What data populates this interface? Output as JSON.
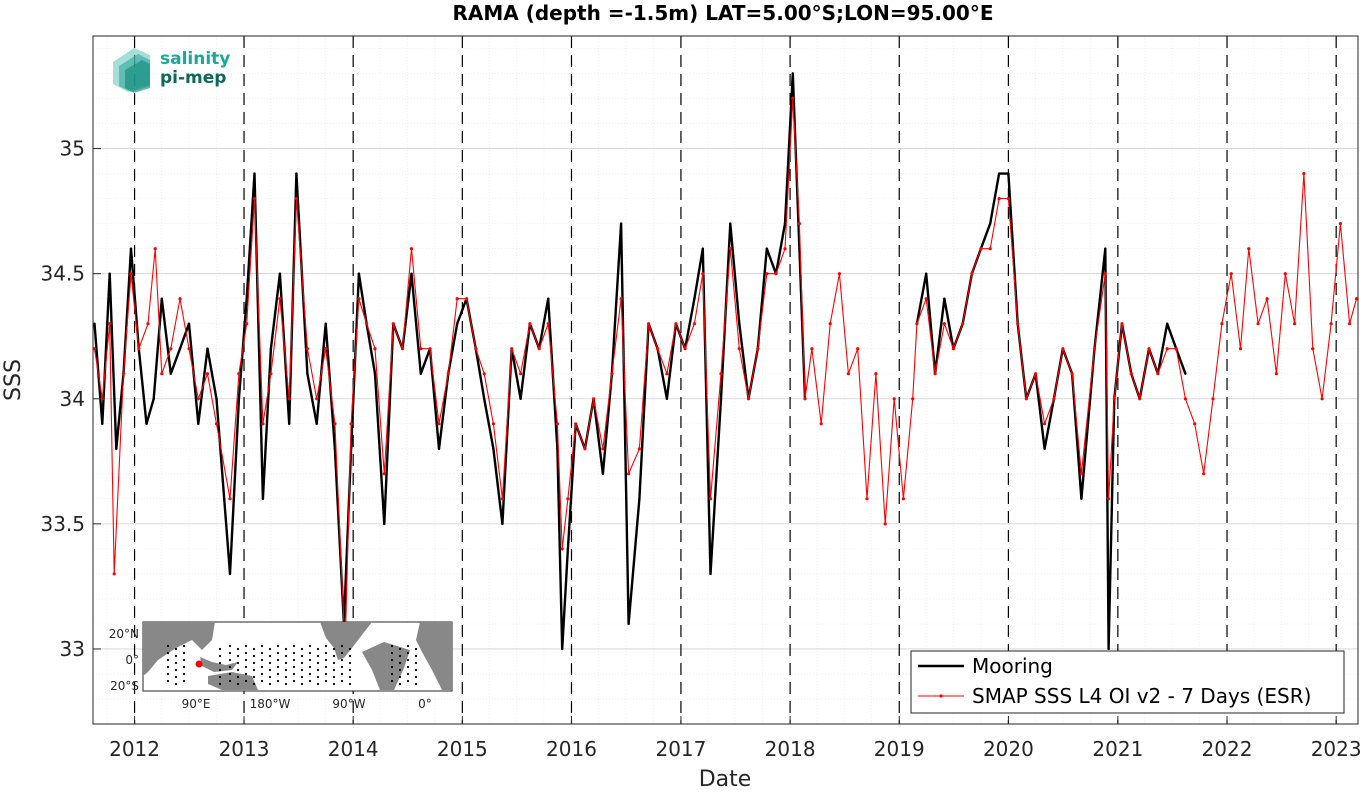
{
  "chart_data": {
    "type": "line",
    "title": "RAMA (depth =-1.5m) LAT=5.00°S;LON=95.00°E",
    "xlabel": "Date",
    "ylabel": "SSS",
    "xlim": [
      "2011-08-15",
      "2023-03-15"
    ],
    "ylim": [
      32.7,
      35.45
    ],
    "x_ticks": [
      "2012",
      "2013",
      "2014",
      "2015",
      "2016",
      "2017",
      "2018",
      "2019",
      "2020",
      "2021",
      "2022",
      "2023"
    ],
    "y_ticks": [
      33,
      33.5,
      34,
      34.5,
      35
    ],
    "y_tick_labels": [
      "33",
      "33.5",
      "34",
      "34.5",
      "35"
    ],
    "grid": true,
    "year_boundary_lines": "dashed black at each Jan 1",
    "legend_location": "bottom-right",
    "series": [
      {
        "name": "Mooring",
        "color": "#000000",
        "points": [
          [
            "2011-08-20",
            34.3
          ],
          [
            "2011-09-15",
            33.9
          ],
          [
            "2011-10-10",
            34.5
          ],
          [
            "2011-11-01",
            33.8
          ],
          [
            "2011-11-25",
            34.1
          ],
          [
            "2011-12-20",
            34.6
          ],
          [
            "2012-01-15",
            34.2
          ],
          [
            "2012-02-10",
            33.9
          ],
          [
            "2012-03-05",
            34.0
          ],
          [
            "2012-04-01",
            34.4
          ],
          [
            "2012-05-01",
            34.1
          ],
          [
            "2012-06-01",
            34.2
          ],
          [
            "2012-07-01",
            34.3
          ],
          [
            "2012-08-01",
            33.9
          ],
          [
            "2012-09-01",
            34.2
          ],
          [
            "2012-10-01",
            34.0
          ],
          [
            "2012-11-15",
            33.3
          ],
          [
            "2012-12-15",
            34.0
          ],
          [
            "2013-01-10",
            34.4
          ],
          [
            "2013-02-05",
            34.9
          ],
          [
            "2013-03-05",
            33.6
          ],
          [
            "2013-04-01",
            34.2
          ],
          [
            "2013-05-01",
            34.5
          ],
          [
            "2013-06-01",
            33.9
          ],
          [
            "2013-06-25",
            34.9
          ],
          [
            "2013-08-01",
            34.1
          ],
          [
            "2013-09-01",
            33.9
          ],
          [
            "2013-10-01",
            34.3
          ],
          [
            "2013-11-01",
            33.8
          ],
          [
            "2013-12-01",
            33.1
          ],
          [
            "2013-12-25",
            33.8
          ],
          [
            "2014-01-20",
            34.5
          ],
          [
            "2014-02-15",
            34.3
          ],
          [
            "2014-03-15",
            34.1
          ],
          [
            "2014-04-15",
            33.5
          ],
          [
            "2014-05-15",
            34.3
          ],
          [
            "2014-06-15",
            34.2
          ],
          [
            "2014-07-15",
            34.5
          ],
          [
            "2014-08-15",
            34.1
          ],
          [
            "2014-09-15",
            34.2
          ],
          [
            "2014-10-15",
            33.8
          ],
          [
            "2014-11-15",
            34.1
          ],
          [
            "2014-12-15",
            34.3
          ],
          [
            "2015-01-15",
            34.4
          ],
          [
            "2015-02-15",
            34.2
          ],
          [
            "2015-03-15",
            34.0
          ],
          [
            "2015-04-15",
            33.8
          ],
          [
            "2015-05-15",
            33.5
          ],
          [
            "2015-06-15",
            34.2
          ],
          [
            "2015-07-15",
            34.0
          ],
          [
            "2015-08-15",
            34.3
          ],
          [
            "2015-09-15",
            34.2
          ],
          [
            "2015-10-15",
            34.4
          ],
          [
            "2015-11-15",
            33.8
          ],
          [
            "2015-12-01",
            33.0
          ],
          [
            "2015-12-20",
            33.4
          ],
          [
            "2016-01-15",
            33.9
          ],
          [
            "2016-02-15",
            33.8
          ],
          [
            "2016-03-15",
            34.0
          ],
          [
            "2016-04-15",
            33.7
          ],
          [
            "2016-05-15",
            34.1
          ],
          [
            "2016-06-15",
            34.7
          ],
          [
            "2016-07-10",
            33.1
          ],
          [
            "2016-08-15",
            33.6
          ],
          [
            "2016-09-15",
            34.3
          ],
          [
            "2016-10-15",
            34.2
          ],
          [
            "2016-11-15",
            34.0
          ],
          [
            "2016-12-15",
            34.3
          ],
          [
            "2017-01-15",
            34.2
          ],
          [
            "2017-02-15",
            34.4
          ],
          [
            "2017-03-15",
            34.6
          ],
          [
            "2017-04-10",
            33.3
          ],
          [
            "2017-05-15",
            34.0
          ],
          [
            "2017-06-15",
            34.7
          ],
          [
            "2017-07-15",
            34.3
          ],
          [
            "2017-08-15",
            34.0
          ],
          [
            "2017-09-15",
            34.2
          ],
          [
            "2017-10-15",
            34.6
          ],
          [
            "2017-11-15",
            34.5
          ],
          [
            "2017-12-15",
            34.7
          ],
          [
            "2018-01-10",
            35.3
          ],
          [
            "2018-02-01",
            34.6
          ],
          [
            "2018-02-20",
            34.0
          ],
          [
            "2019-03-01",
            34.3
          ],
          [
            "2019-04-01",
            34.5
          ],
          [
            "2019-05-01",
            34.1
          ],
          [
            "2019-06-01",
            34.4
          ],
          [
            "2019-07-01",
            34.2
          ],
          [
            "2019-08-01",
            34.3
          ],
          [
            "2019-09-01",
            34.5
          ],
          [
            "2019-10-01",
            34.6
          ],
          [
            "2019-11-01",
            34.7
          ],
          [
            "2019-12-01",
            34.9
          ],
          [
            "2020-01-01",
            34.9
          ],
          [
            "2020-02-01",
            34.3
          ],
          [
            "2020-03-01",
            34.0
          ],
          [
            "2020-04-01",
            34.1
          ],
          [
            "2020-05-01",
            33.8
          ],
          [
            "2020-06-01",
            34.0
          ],
          [
            "2020-07-01",
            34.2
          ],
          [
            "2020-08-01",
            34.1
          ],
          [
            "2020-09-01",
            33.6
          ],
          [
            "2020-10-15",
            34.2
          ],
          [
            "2020-11-20",
            34.6
          ],
          [
            "2020-12-01",
            33.0
          ],
          [
            "2020-12-20",
            34.0
          ],
          [
            "2021-01-15",
            34.3
          ],
          [
            "2021-02-15",
            34.1
          ],
          [
            "2021-03-15",
            34.0
          ],
          [
            "2021-04-15",
            34.2
          ],
          [
            "2021-05-15",
            34.1
          ],
          [
            "2021-06-15",
            34.3
          ],
          [
            "2021-07-15",
            34.2
          ],
          [
            "2021-08-15",
            34.1
          ]
        ]
      },
      {
        "name": "SMAP SSS L4 OI v2 - 7 Days (ESR)",
        "color": "#ff0000",
        "points": [
          [
            "2011-08-20",
            34.2
          ],
          [
            "2011-09-15",
            34.0
          ],
          [
            "2011-10-10",
            34.3
          ],
          [
            "2011-10-25",
            33.3
          ],
          [
            "2011-11-25",
            34.1
          ],
          [
            "2011-12-20",
            34.5
          ],
          [
            "2012-01-15",
            34.2
          ],
          [
            "2012-02-15",
            34.3
          ],
          [
            "2012-03-10",
            34.6
          ],
          [
            "2012-04-01",
            34.1
          ],
          [
            "2012-05-01",
            34.2
          ],
          [
            "2012-06-01",
            34.4
          ],
          [
            "2012-07-01",
            34.2
          ],
          [
            "2012-08-01",
            34.0
          ],
          [
            "2012-09-01",
            34.1
          ],
          [
            "2012-10-01",
            33.9
          ],
          [
            "2012-11-15",
            33.6
          ],
          [
            "2012-12-15",
            34.1
          ],
          [
            "2013-01-10",
            34.3
          ],
          [
            "2013-02-05",
            34.8
          ],
          [
            "2013-03-05",
            33.9
          ],
          [
            "2013-04-01",
            34.1
          ],
          [
            "2013-05-01",
            34.4
          ],
          [
            "2013-06-01",
            34.0
          ],
          [
            "2013-06-25",
            34.8
          ],
          [
            "2013-08-01",
            34.2
          ],
          [
            "2013-09-01",
            34.0
          ],
          [
            "2013-10-01",
            34.2
          ],
          [
            "2013-11-01",
            33.9
          ],
          [
            "2013-12-05",
            33.0
          ],
          [
            "2013-12-25",
            33.9
          ],
          [
            "2014-01-20",
            34.4
          ],
          [
            "2014-02-15",
            34.3
          ],
          [
            "2014-03-15",
            34.2
          ],
          [
            "2014-04-15",
            33.7
          ],
          [
            "2014-05-15",
            34.3
          ],
          [
            "2014-06-15",
            34.2
          ],
          [
            "2014-07-15",
            34.6
          ],
          [
            "2014-08-15",
            34.2
          ],
          [
            "2014-09-15",
            34.2
          ],
          [
            "2014-10-15",
            33.9
          ],
          [
            "2014-11-15",
            34.1
          ],
          [
            "2014-12-15",
            34.4
          ],
          [
            "2015-01-15",
            34.4
          ],
          [
            "2015-02-15",
            34.2
          ],
          [
            "2015-03-15",
            34.1
          ],
          [
            "2015-04-15",
            33.9
          ],
          [
            "2015-05-15",
            33.6
          ],
          [
            "2015-06-15",
            34.2
          ],
          [
            "2015-07-15",
            34.1
          ],
          [
            "2015-08-15",
            34.3
          ],
          [
            "2015-09-15",
            34.2
          ],
          [
            "2015-10-15",
            34.3
          ],
          [
            "2015-11-15",
            33.9
          ],
          [
            "2015-12-01",
            33.4
          ],
          [
            "2015-12-20",
            33.6
          ],
          [
            "2016-01-15",
            33.9
          ],
          [
            "2016-02-15",
            33.8
          ],
          [
            "2016-03-15",
            34.0
          ],
          [
            "2016-04-15",
            33.8
          ],
          [
            "2016-05-15",
            34.1
          ],
          [
            "2016-06-15",
            34.4
          ],
          [
            "2016-07-10",
            33.7
          ],
          [
            "2016-08-15",
            33.8
          ],
          [
            "2016-09-15",
            34.3
          ],
          [
            "2016-10-15",
            34.2
          ],
          [
            "2016-11-15",
            34.1
          ],
          [
            "2016-12-15",
            34.3
          ],
          [
            "2017-01-15",
            34.2
          ],
          [
            "2017-02-15",
            34.3
          ],
          [
            "2017-03-15",
            34.5
          ],
          [
            "2017-04-10",
            33.6
          ],
          [
            "2017-05-15",
            34.1
          ],
          [
            "2017-06-15",
            34.6
          ],
          [
            "2017-07-15",
            34.2
          ],
          [
            "2017-08-15",
            34.0
          ],
          [
            "2017-09-15",
            34.2
          ],
          [
            "2017-10-15",
            34.5
          ],
          [
            "2017-11-15",
            34.5
          ],
          [
            "2017-12-15",
            34.6
          ],
          [
            "2018-01-10",
            35.2
          ],
          [
            "2018-02-01",
            34.7
          ],
          [
            "2018-02-20",
            34.0
          ],
          [
            "2018-03-15",
            34.2
          ],
          [
            "2018-04-15",
            33.9
          ],
          [
            "2018-05-15",
            34.3
          ],
          [
            "2018-06-15",
            34.5
          ],
          [
            "2018-07-15",
            34.1
          ],
          [
            "2018-08-15",
            34.2
          ],
          [
            "2018-09-15",
            33.6
          ],
          [
            "2018-10-15",
            34.1
          ],
          [
            "2018-11-15",
            33.5
          ],
          [
            "2018-12-15",
            34.0
          ],
          [
            "2019-01-15",
            33.6
          ],
          [
            "2019-02-15",
            34.0
          ],
          [
            "2019-03-01",
            34.3
          ],
          [
            "2019-04-01",
            34.4
          ],
          [
            "2019-05-01",
            34.1
          ],
          [
            "2019-06-01",
            34.3
          ],
          [
            "2019-07-01",
            34.2
          ],
          [
            "2019-08-01",
            34.3
          ],
          [
            "2019-09-01",
            34.5
          ],
          [
            "2019-10-01",
            34.6
          ],
          [
            "2019-11-01",
            34.6
          ],
          [
            "2019-12-01",
            34.8
          ],
          [
            "2020-01-01",
            34.8
          ],
          [
            "2020-02-01",
            34.3
          ],
          [
            "2020-03-01",
            34.0
          ],
          [
            "2020-04-01",
            34.1
          ],
          [
            "2020-05-01",
            33.9
          ],
          [
            "2020-06-01",
            34.0
          ],
          [
            "2020-07-01",
            34.2
          ],
          [
            "2020-08-01",
            34.1
          ],
          [
            "2020-09-01",
            33.7
          ],
          [
            "2020-10-15",
            34.2
          ],
          [
            "2020-11-20",
            34.5
          ],
          [
            "2020-12-01",
            33.6
          ],
          [
            "2020-12-20",
            34.0
          ],
          [
            "2021-01-15",
            34.3
          ],
          [
            "2021-02-15",
            34.1
          ],
          [
            "2021-03-15",
            34.0
          ],
          [
            "2021-04-15",
            34.2
          ],
          [
            "2021-05-15",
            34.1
          ],
          [
            "2021-06-15",
            34.2
          ],
          [
            "2021-07-15",
            34.2
          ],
          [
            "2021-08-15",
            34.0
          ],
          [
            "2021-09-15",
            33.9
          ],
          [
            "2021-10-15",
            33.7
          ],
          [
            "2021-11-15",
            34.0
          ],
          [
            "2021-12-15",
            34.3
          ],
          [
            "2022-01-15",
            34.5
          ],
          [
            "2022-02-15",
            34.2
          ],
          [
            "2022-03-15",
            34.6
          ],
          [
            "2022-04-15",
            34.3
          ],
          [
            "2022-05-15",
            34.4
          ],
          [
            "2022-06-15",
            34.1
          ],
          [
            "2022-07-15",
            34.5
          ],
          [
            "2022-08-15",
            34.3
          ],
          [
            "2022-09-15",
            34.9
          ],
          [
            "2022-10-15",
            34.2
          ],
          [
            "2022-11-15",
            34.0
          ],
          [
            "2022-12-15",
            34.3
          ],
          [
            "2023-01-15",
            34.7
          ],
          [
            "2023-02-15",
            34.3
          ],
          [
            "2023-03-10",
            34.4
          ]
        ]
      }
    ]
  },
  "logo": {
    "line1": "salinity",
    "line2": "pi-mep",
    "color1": "#19a99a",
    "color2": "#10665c"
  },
  "inset_map": {
    "y_labels": [
      "20°N",
      "0°",
      "20°S"
    ],
    "x_labels": [
      "90°E",
      "180°W",
      "90°W",
      "0°"
    ],
    "land_color": "#888888",
    "marker_color": "#ff0000"
  }
}
